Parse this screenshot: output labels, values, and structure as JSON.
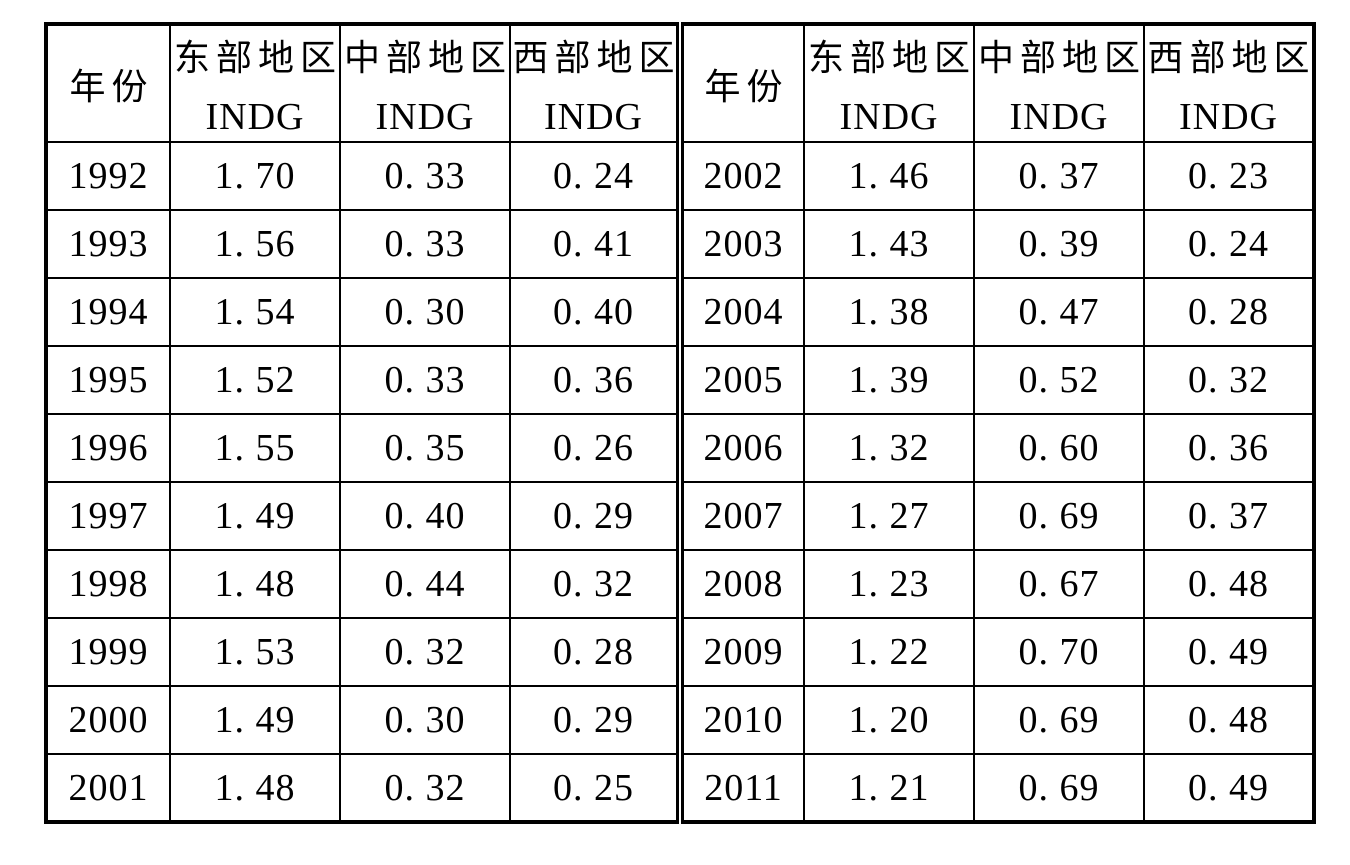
{
  "colors": {
    "background": "#ffffff",
    "text": "#000000",
    "border": "#000000"
  },
  "table": {
    "columns": {
      "year_label": "年份",
      "region_labels": [
        "东部地区",
        "中部地区",
        "西部地区"
      ],
      "indicator_label": "INDG"
    },
    "rows": [
      {
        "y1": "1992",
        "e1": "1. 70",
        "c1": "0. 33",
        "w1": "0. 24",
        "y2": "2002",
        "e2": "1. 46",
        "c2": "0. 37",
        "w2": "0. 23"
      },
      {
        "y1": "1993",
        "e1": "1. 56",
        "c1": "0. 33",
        "w1": "0. 41",
        "y2": "2003",
        "e2": "1. 43",
        "c2": "0. 39",
        "w2": "0. 24"
      },
      {
        "y1": "1994",
        "e1": "1. 54",
        "c1": "0. 30",
        "w1": "0. 40",
        "y2": "2004",
        "e2": "1. 38",
        "c2": "0. 47",
        "w2": "0. 28"
      },
      {
        "y1": "1995",
        "e1": "1. 52",
        "c1": "0. 33",
        "w1": "0. 36",
        "y2": "2005",
        "e2": "1. 39",
        "c2": "0. 52",
        "w2": "0. 32"
      },
      {
        "y1": "1996",
        "e1": "1. 55",
        "c1": "0. 35",
        "w1": "0. 26",
        "y2": "2006",
        "e2": "1. 32",
        "c2": "0. 60",
        "w2": "0. 36"
      },
      {
        "y1": "1997",
        "e1": "1. 49",
        "c1": "0. 40",
        "w1": "0. 29",
        "y2": "2007",
        "e2": "1. 27",
        "c2": "0. 69",
        "w2": "0. 37"
      },
      {
        "y1": "1998",
        "e1": "1. 48",
        "c1": "0. 44",
        "w1": "0. 32",
        "y2": "2008",
        "e2": "1. 23",
        "c2": "0. 67",
        "w2": "0. 48"
      },
      {
        "y1": "1999",
        "e1": "1. 53",
        "c1": "0. 32",
        "w1": "0. 28",
        "y2": "2009",
        "e2": "1. 22",
        "c2": "0. 70",
        "w2": "0. 49"
      },
      {
        "y1": "2000",
        "e1": "1. 49",
        "c1": "0. 30",
        "w1": "0. 29",
        "y2": "2010",
        "e2": "1. 20",
        "c2": "0. 69",
        "w2": "0. 48"
      },
      {
        "y1": "2001",
        "e1": "1. 48",
        "c1": "0. 32",
        "w1": "0. 25",
        "y2": "2011",
        "e2": "1. 21",
        "c2": "0. 69",
        "w2": "0. 49"
      }
    ]
  },
  "chart_data": {
    "type": "table",
    "title": "",
    "layout": "two side-by-side half-tables separated by a double rule; years 1992-2001 on the left, 2002-2011 on the right",
    "columns": [
      "年份",
      "东部地区 INDG",
      "中部地区 INDG",
      "西部地区 INDG"
    ],
    "rows": [
      [
        1992,
        1.7,
        0.33,
        0.24
      ],
      [
        1993,
        1.56,
        0.33,
        0.41
      ],
      [
        1994,
        1.54,
        0.3,
        0.4
      ],
      [
        1995,
        1.52,
        0.33,
        0.36
      ],
      [
        1996,
        1.55,
        0.35,
        0.26
      ],
      [
        1997,
        1.49,
        0.4,
        0.29
      ],
      [
        1998,
        1.48,
        0.44,
        0.32
      ],
      [
        1999,
        1.53,
        0.32,
        0.28
      ],
      [
        2000,
        1.49,
        0.3,
        0.29
      ],
      [
        2001,
        1.48,
        0.32,
        0.25
      ],
      [
        2002,
        1.46,
        0.37,
        0.23
      ],
      [
        2003,
        1.43,
        0.39,
        0.24
      ],
      [
        2004,
        1.38,
        0.47,
        0.28
      ],
      [
        2005,
        1.39,
        0.52,
        0.32
      ],
      [
        2006,
        1.32,
        0.6,
        0.36
      ],
      [
        2007,
        1.27,
        0.69,
        0.37
      ],
      [
        2008,
        1.23,
        0.67,
        0.48
      ],
      [
        2009,
        1.22,
        0.7,
        0.49
      ],
      [
        2010,
        1.2,
        0.69,
        0.48
      ],
      [
        2011,
        1.21,
        0.69,
        0.49
      ]
    ]
  }
}
